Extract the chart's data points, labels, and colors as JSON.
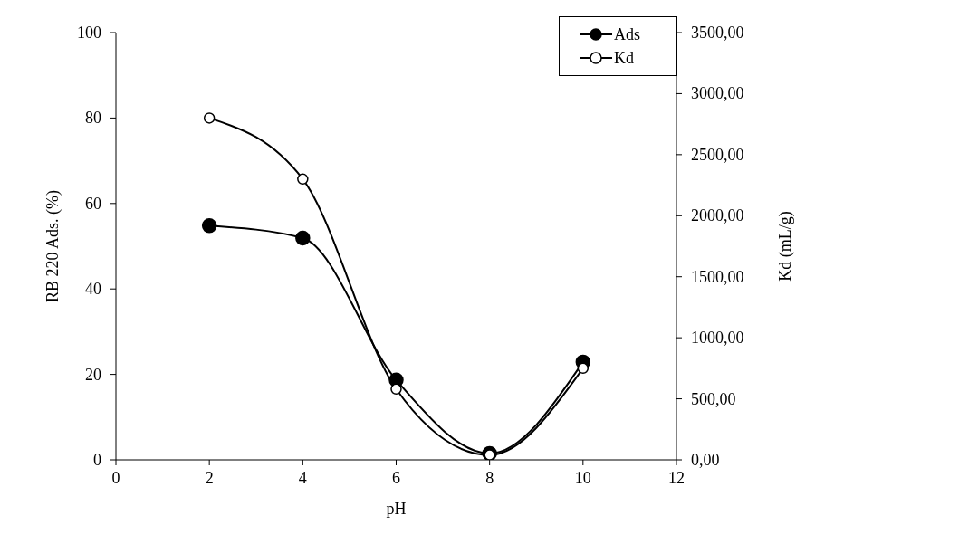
{
  "chart_data": {
    "type": "line",
    "xlabel": "pH",
    "ylabel": "RB 220  Ads. (%)",
    "y2label": "Kd (mL/g)",
    "x": [
      2,
      4,
      6,
      8,
      10
    ],
    "series": [
      {
        "name": "Ads",
        "color": "#000000",
        "values": [
          54.8,
          51.9,
          18.7,
          1.5,
          22.9
        ]
      },
      {
        "name": "Kd",
        "color": "#000000",
        "axis": "y2",
        "values": [
          2800,
          2300,
          580,
          40,
          750
        ]
      }
    ],
    "xlim": [
      0,
      12
    ],
    "xticks": [
      0,
      2,
      4,
      6,
      8,
      10,
      12
    ],
    "ylim": [
      0,
      100
    ],
    "yticks": [
      0,
      20,
      40,
      60,
      80,
      100
    ],
    "y2lim": [
      0,
      3500
    ],
    "y2ticks": [
      {
        "value": 0,
        "label": "0,00"
      },
      {
        "value": 500,
        "label": "500,00"
      },
      {
        "value": 1000,
        "label": "1000,00"
      },
      {
        "value": 1500,
        "label": "1500,00"
      },
      {
        "value": 2000,
        "label": "2000,00"
      },
      {
        "value": 2500,
        "label": "2500,00"
      },
      {
        "value": 3000,
        "label": "3000,00"
      },
      {
        "value": 3500,
        "label": "3500,00"
      }
    ],
    "legend": "top right",
    "marker": "circle",
    "grid": false
  }
}
